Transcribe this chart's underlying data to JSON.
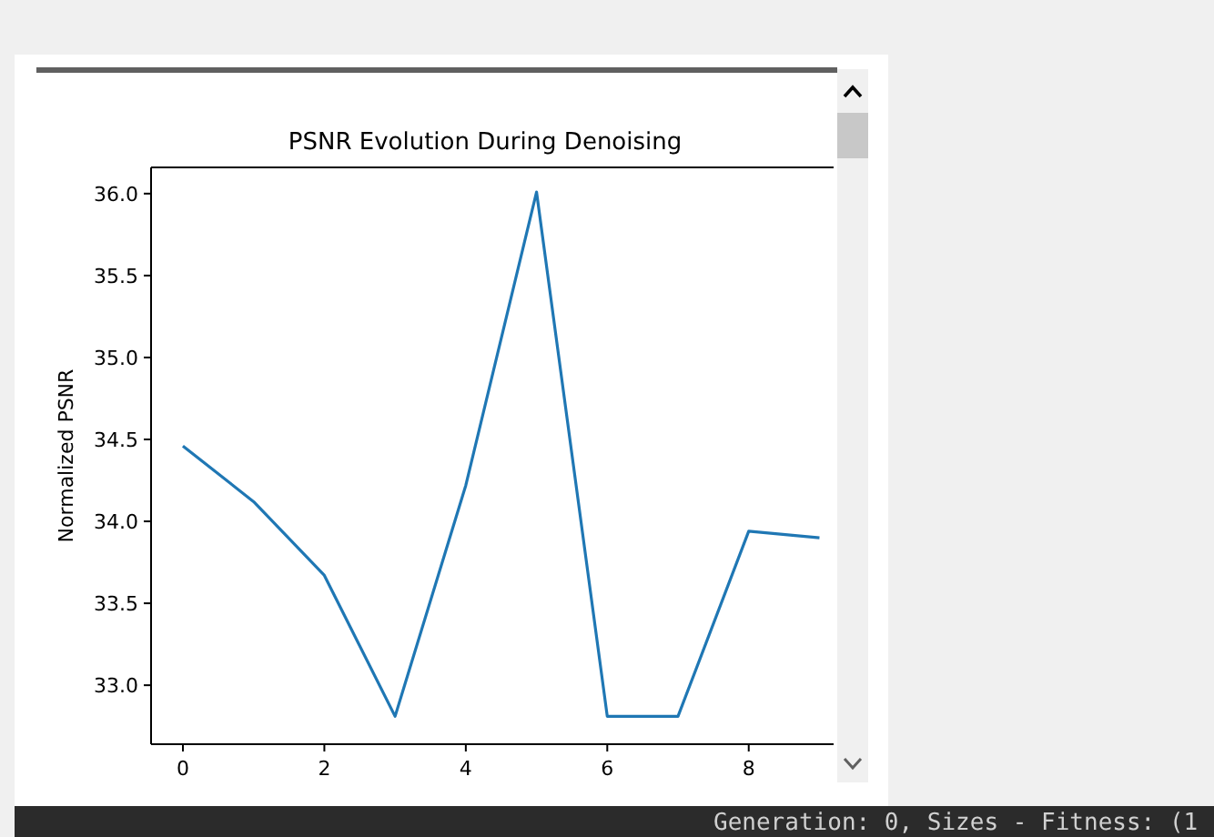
{
  "chart_data": {
    "type": "line",
    "title": "PSNR Evolution During Denoising",
    "ylabel": "Normalized PSNR",
    "x": [
      0,
      1,
      2,
      3,
      4,
      5,
      6,
      7,
      8,
      9
    ],
    "series": [
      {
        "color": "#1f77b4",
        "values": [
          34.46,
          34.12,
          33.67,
          32.81,
          34.22,
          36.01,
          32.81,
          32.81,
          33.94,
          33.9
        ]
      }
    ],
    "xlim": [
      -0.45,
      9.2
    ],
    "ylim": [
      32.64,
      36.16
    ],
    "xticks": [
      0,
      2,
      4,
      6,
      8
    ],
    "yticks": [
      {
        "value": 33,
        "label": "33.0"
      },
      {
        "value": 33.5,
        "label": "33.5"
      },
      {
        "value": 34,
        "label": "34.0"
      },
      {
        "value": 34.5,
        "label": "34.5"
      },
      {
        "value": 35,
        "label": "35.0"
      },
      {
        "value": 35.5,
        "label": "35.5"
      },
      {
        "value": 36,
        "label": "36.0"
      }
    ],
    "grid": false,
    "marker": "none",
    "line_style": "solid",
    "annotations": [
      "Generation: 0, Sizes - Fitness: (1"
    ]
  }
}
